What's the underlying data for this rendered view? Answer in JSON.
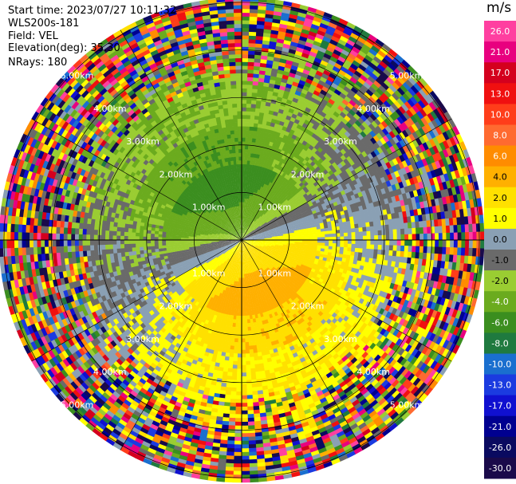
{
  "header": {
    "start_time": "Start time: 2023/07/27 10:11:32",
    "instrument": "WLS200s-181",
    "field": "Field: VEL",
    "elevation": "Elevation(deg): 35.30",
    "nrays": "NRays: 180"
  },
  "chart_data": {
    "type": "heatmap",
    "projection": "polar-ppi",
    "field": "VEL",
    "unit": "m/s",
    "elevation_deg": 35.3,
    "nrays": 180,
    "range_ring_labels": [
      "1.00km",
      "2.00km",
      "3.00km",
      "4.00km",
      "5.00km"
    ],
    "range_rings_km": [
      1,
      2,
      3,
      4,
      5
    ],
    "max_range_km": 5.1,
    "colorbar": {
      "ticks": [
        "26.0",
        "21.0",
        "17.0",
        "13.0",
        "10.0",
        "8.0",
        "6.0",
        "4.0",
        "2.0",
        "1.0",
        "0.0",
        "-1.0",
        "-2.0",
        "-4.0",
        "-6.0",
        "-8.0",
        "-10.0",
        "-13.0",
        "-17.0",
        "-21.0",
        "-26.0",
        "-30.0"
      ],
      "colors": [
        "#ff3fa0",
        "#e8007f",
        "#d4001e",
        "#f01010",
        "#ff3d1a",
        "#ff6a30",
        "#ff8c00",
        "#ffb000",
        "#ffe000",
        "#ffff00",
        "#8aa0b4",
        "#6a6a6a",
        "#9acd32",
        "#6bab1e",
        "#3b8e1f",
        "#1f7a3f",
        "#1a6fcf",
        "#1b3be0",
        "#1010d0",
        "#000090",
        "#0a0a60",
        "#1a0a4a"
      ]
    },
    "velocity_pattern": {
      "near_field": "mixed approaching/receding around origin",
      "positive_sector_center_deg": 160,
      "negative_sector_center_deg": 330,
      "peak_positive_ms": 6.0,
      "peak_negative_ms": -6.0,
      "noise_start_km": 3.3
    }
  }
}
